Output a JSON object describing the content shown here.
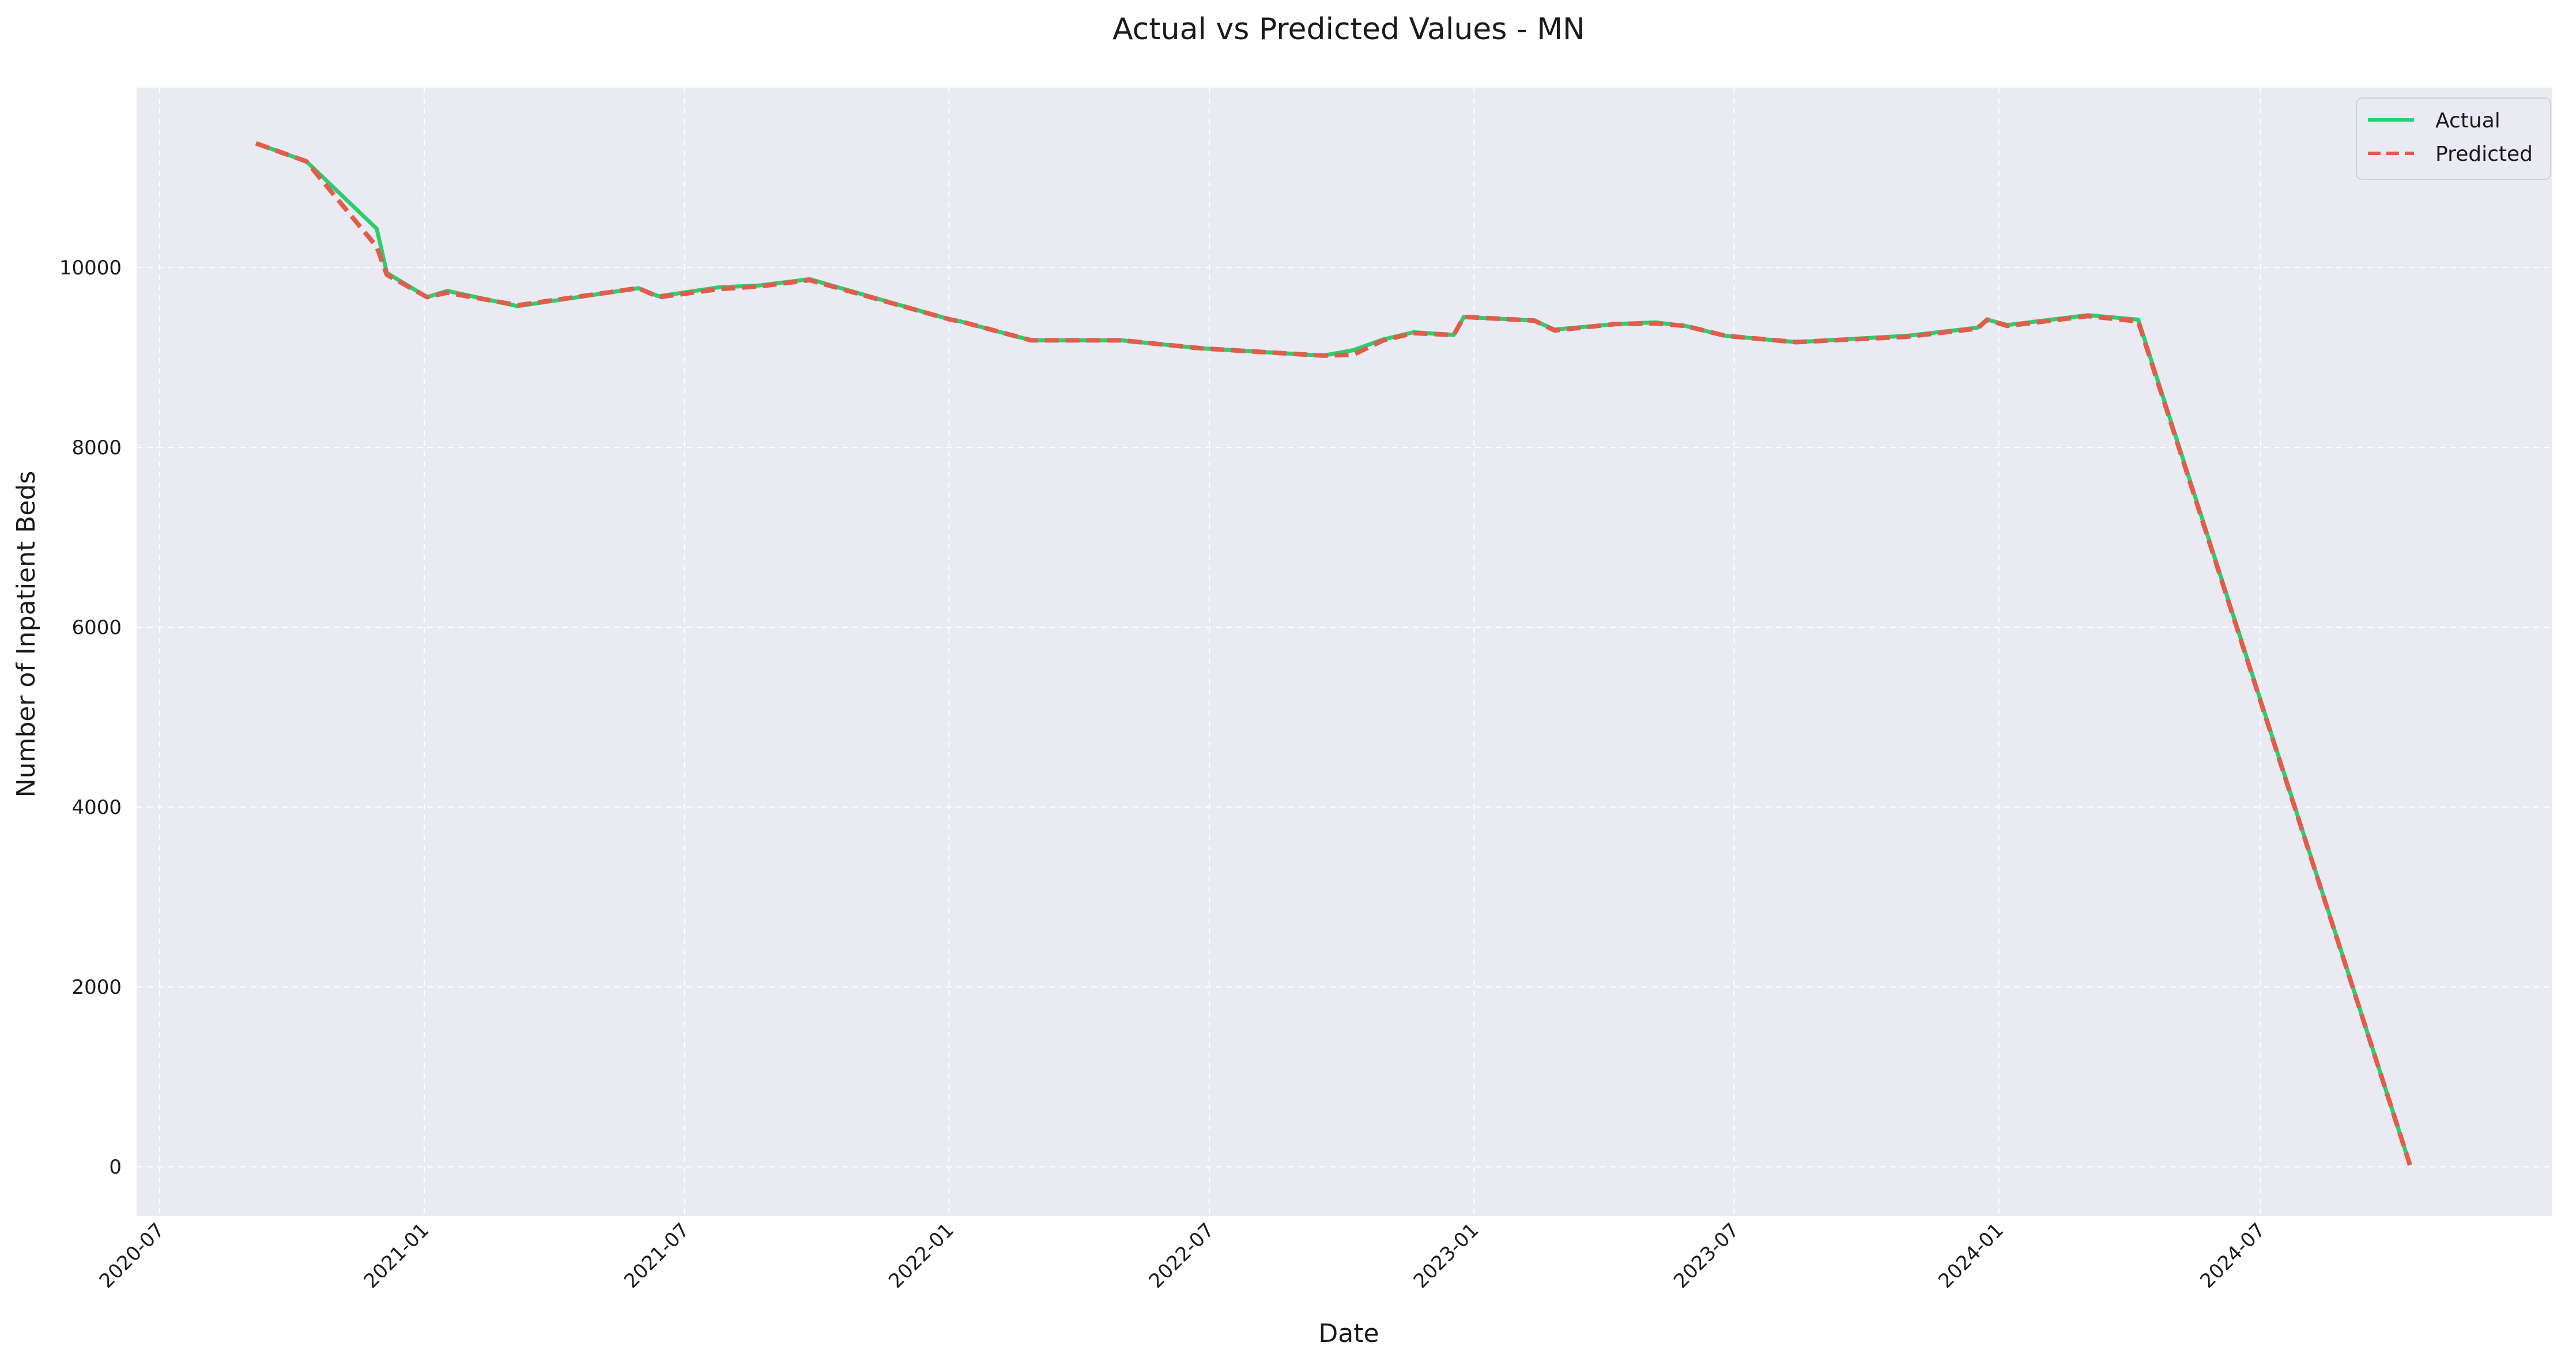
{
  "chart_data": {
    "type": "line",
    "title": "Actual vs Predicted Values - MN",
    "xlabel": "Date",
    "ylabel": "Number of Inpatient Beds",
    "x_axis_type": "date",
    "xlim": [
      "2020-06-15",
      "2025-01-20"
    ],
    "ylim": [
      -550,
      12000
    ],
    "grid": true,
    "legend_position": "top-right",
    "x_ticks": [
      "2020-07",
      "2021-01",
      "2021-07",
      "2022-01",
      "2022-07",
      "2023-01",
      "2023-07",
      "2024-01",
      "2024-07"
    ],
    "y_ticks": [
      0,
      2000,
      4000,
      6000,
      8000,
      10000
    ],
    "series": [
      {
        "name": "Actual",
        "color": "#2ecc71",
        "style": "solid",
        "points": [
          [
            "2020-09-06",
            11380
          ],
          [
            "2020-10-11",
            11180
          ],
          [
            "2020-11-29",
            10430
          ],
          [
            "2020-12-06",
            9940
          ],
          [
            "2021-01-03",
            9670
          ],
          [
            "2021-01-17",
            9740
          ],
          [
            "2021-03-07",
            9570
          ],
          [
            "2021-05-30",
            9770
          ],
          [
            "2021-06-13",
            9680
          ],
          [
            "2021-07-25",
            9780
          ],
          [
            "2021-08-22",
            9800
          ],
          [
            "2021-09-26",
            9870
          ],
          [
            "2022-01-02",
            9420
          ],
          [
            "2022-01-09",
            9400
          ],
          [
            "2022-02-27",
            9190
          ],
          [
            "2022-05-01",
            9190
          ],
          [
            "2022-06-26",
            9100
          ],
          [
            "2022-09-18",
            9020
          ],
          [
            "2022-10-09",
            9080
          ],
          [
            "2022-10-30",
            9200
          ],
          [
            "2022-11-20",
            9280
          ],
          [
            "2022-12-18",
            9250
          ],
          [
            "2022-12-25",
            9450
          ],
          [
            "2023-02-12",
            9410
          ],
          [
            "2023-02-26",
            9310
          ],
          [
            "2023-04-09",
            9370
          ],
          [
            "2023-05-07",
            9390
          ],
          [
            "2023-05-28",
            9350
          ],
          [
            "2023-06-25",
            9240
          ],
          [
            "2023-08-13",
            9170
          ],
          [
            "2023-10-29",
            9240
          ],
          [
            "2023-12-17",
            9330
          ],
          [
            "2023-12-24",
            9420
          ],
          [
            "2024-01-07",
            9360
          ],
          [
            "2024-03-03",
            9470
          ],
          [
            "2024-04-07",
            9420
          ],
          [
            "2024-10-13",
            20
          ]
        ]
      },
      {
        "name": "Predicted",
        "color": "#e05c4b",
        "style": "dashed",
        "points": [
          [
            "2020-09-06",
            11380
          ],
          [
            "2020-10-11",
            11180
          ],
          [
            "2020-11-29",
            10230
          ],
          [
            "2020-12-06",
            9920
          ],
          [
            "2021-01-03",
            9670
          ],
          [
            "2021-01-17",
            9720
          ],
          [
            "2021-03-07",
            9580
          ],
          [
            "2021-05-30",
            9770
          ],
          [
            "2021-06-13",
            9670
          ],
          [
            "2021-07-25",
            9760
          ],
          [
            "2021-08-22",
            9790
          ],
          [
            "2021-09-26",
            9860
          ],
          [
            "2022-01-02",
            9420
          ],
          [
            "2022-01-09",
            9400
          ],
          [
            "2022-02-27",
            9190
          ],
          [
            "2022-05-01",
            9190
          ],
          [
            "2022-06-26",
            9100
          ],
          [
            "2022-09-18",
            9020
          ],
          [
            "2022-10-09",
            9030
          ],
          [
            "2022-10-30",
            9190
          ],
          [
            "2022-11-20",
            9270
          ],
          [
            "2022-12-18",
            9250
          ],
          [
            "2022-12-25",
            9450
          ],
          [
            "2023-02-12",
            9410
          ],
          [
            "2023-02-26",
            9300
          ],
          [
            "2023-04-09",
            9370
          ],
          [
            "2023-05-07",
            9380
          ],
          [
            "2023-05-28",
            9350
          ],
          [
            "2023-06-25",
            9240
          ],
          [
            "2023-08-13",
            9170
          ],
          [
            "2023-10-29",
            9230
          ],
          [
            "2023-12-17",
            9320
          ],
          [
            "2023-12-24",
            9420
          ],
          [
            "2024-01-07",
            9350
          ],
          [
            "2024-03-03",
            9460
          ],
          [
            "2024-04-07",
            9400
          ],
          [
            "2024-10-13",
            20
          ]
        ]
      }
    ]
  },
  "colors": {
    "plot_background": "#eaeaf2",
    "grid": "#ffffff",
    "figure_background": "#ffffff"
  }
}
